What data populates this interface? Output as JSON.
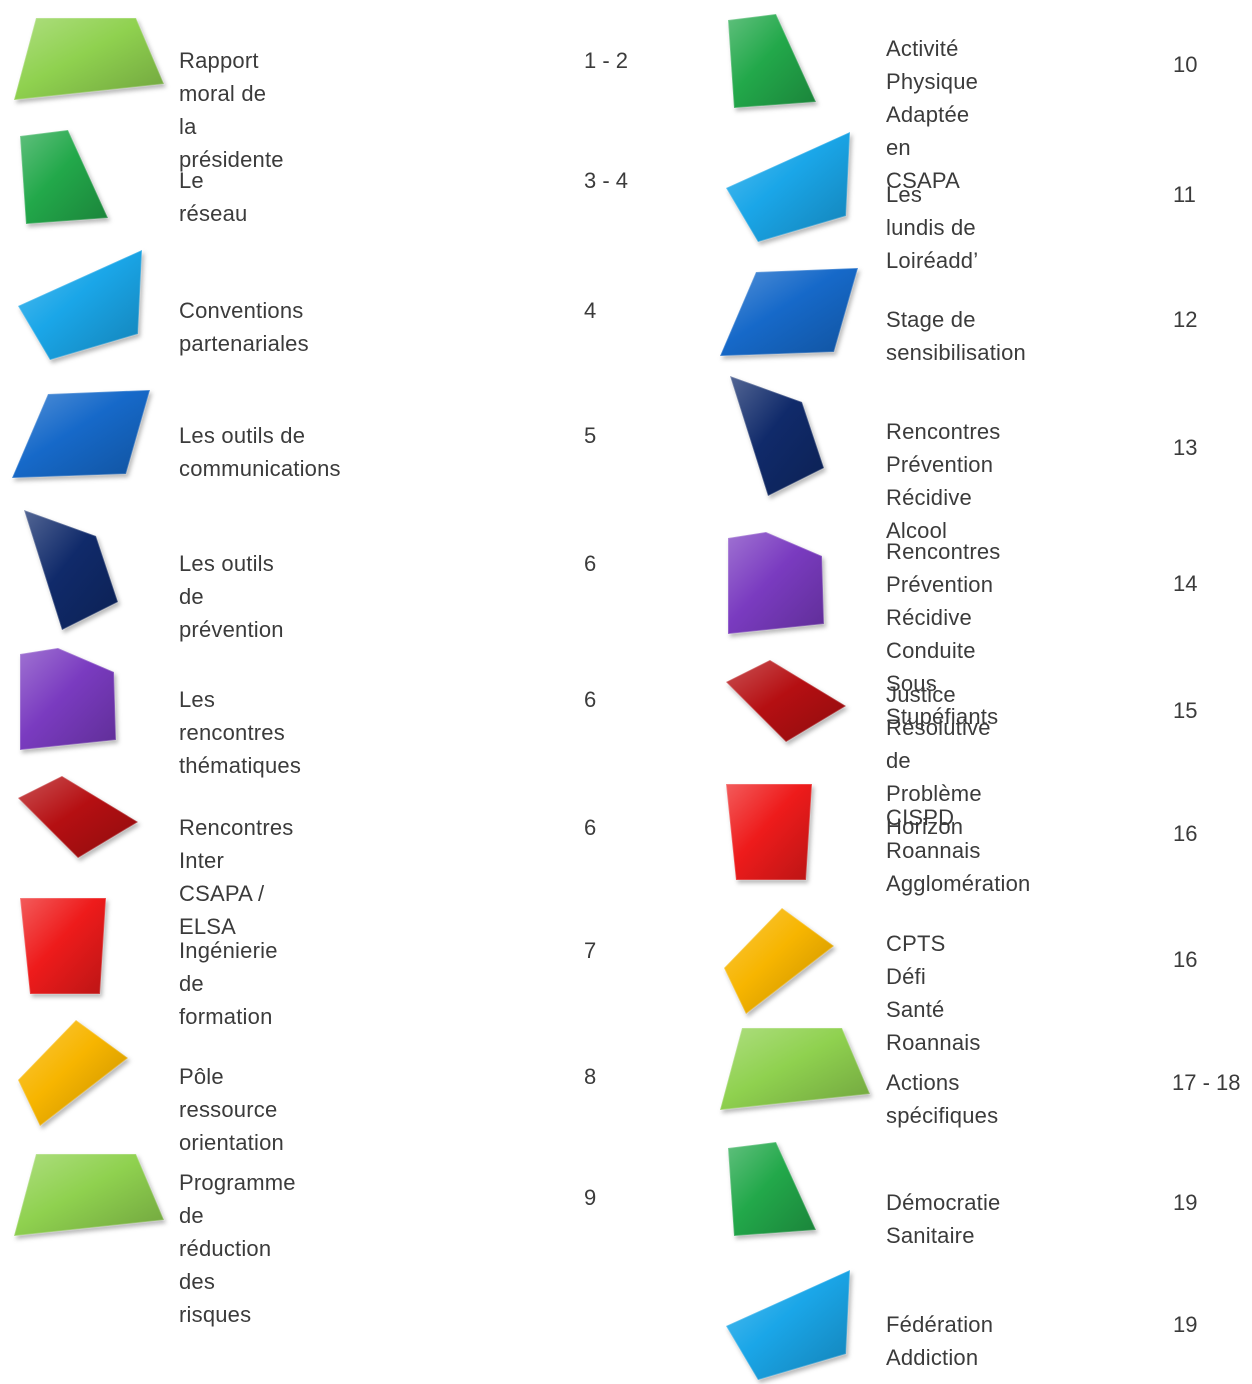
{
  "colors": {
    "lime": "#8fd14f",
    "green": "#22a84a",
    "sky": "#1aa6e8",
    "blue": "#1669c9",
    "navy": "#102a6a",
    "purple": "#7a3bc0",
    "crimson": "#b50f12",
    "red": "#ee1b1b",
    "yellow": "#f7b500"
  },
  "toc": {
    "left": [
      {
        "title": "Rapport moral de la présidente",
        "page": "1 - 2",
        "shape": "trapezoid",
        "color": "lime"
      },
      {
        "title": "Le réseau",
        "page": "3 - 4",
        "shape": "quad-a",
        "color": "green"
      },
      {
        "title": "Conventions partenariales",
        "page": "4",
        "shape": "parallelogram-tilt",
        "color": "sky"
      },
      {
        "title": "Les outils de communications",
        "page": "5",
        "shape": "parallelogram",
        "color": "blue"
      },
      {
        "title": "Les outils de prévention",
        "page": "6",
        "shape": "kite",
        "color": "navy"
      },
      {
        "title": "Les rencontres thématiques",
        "page": "6",
        "shape": "quad-b",
        "color": "purple"
      },
      {
        "title": "Rencontres Inter CSAPA / ELSA",
        "page": "6",
        "shape": "wedge",
        "color": "crimson"
      },
      {
        "title": "Ingénierie de formation",
        "page": "7",
        "shape": "inverted-trapezoid",
        "color": "red"
      },
      {
        "title": "Pôle ressource orientation",
        "page": "8",
        "shape": "diamond",
        "color": "yellow"
      },
      {
        "title": "Programme de réduction des\nrisques",
        "page": "9",
        "shape": "trapezoid",
        "color": "lime"
      }
    ],
    "right": [
      {
        "title": "Activité Physique\nAdaptée en CSAPA",
        "page": "10",
        "shape": "quad-a",
        "color": "green"
      },
      {
        "title": "Les lundis de Loiréadd’",
        "page": "11",
        "shape": "parallelogram-tilt",
        "color": "sky"
      },
      {
        "title": "Stage de sensibilisation",
        "page": "12",
        "shape": "parallelogram",
        "color": "blue"
      },
      {
        "title": "Rencontres Prévention\nRécidive Alcool",
        "page": "13",
        "shape": "kite",
        "color": "navy"
      },
      {
        "title": "Rencontres Prévention\nRécidive Conduite Sous\nStupéfiants",
        "page": "14",
        "shape": "quad-b",
        "color": "purple"
      },
      {
        "title": "Justice Résolutive de\nProblème Horizon",
        "page": "15",
        "shape": "wedge",
        "color": "crimson"
      },
      {
        "title": "CISPD Roannais\nAgglomération",
        "page": "16",
        "shape": "inverted-trapezoid",
        "color": "red"
      },
      {
        "title": "CPTS Défi Santé\nRoannais",
        "page": "16",
        "shape": "diamond",
        "color": "yellow"
      },
      {
        "title": "Actions spécifiques",
        "page": "17 - 18",
        "shape": "trapezoid",
        "color": "lime"
      },
      {
        "title": "Démocratie Sanitaire",
        "page": "19",
        "shape": "quad-a",
        "color": "green"
      },
      {
        "title": "Fédération Addiction",
        "page": "19",
        "shape": "parallelogram-tilt",
        "color": "sky"
      }
    ]
  }
}
